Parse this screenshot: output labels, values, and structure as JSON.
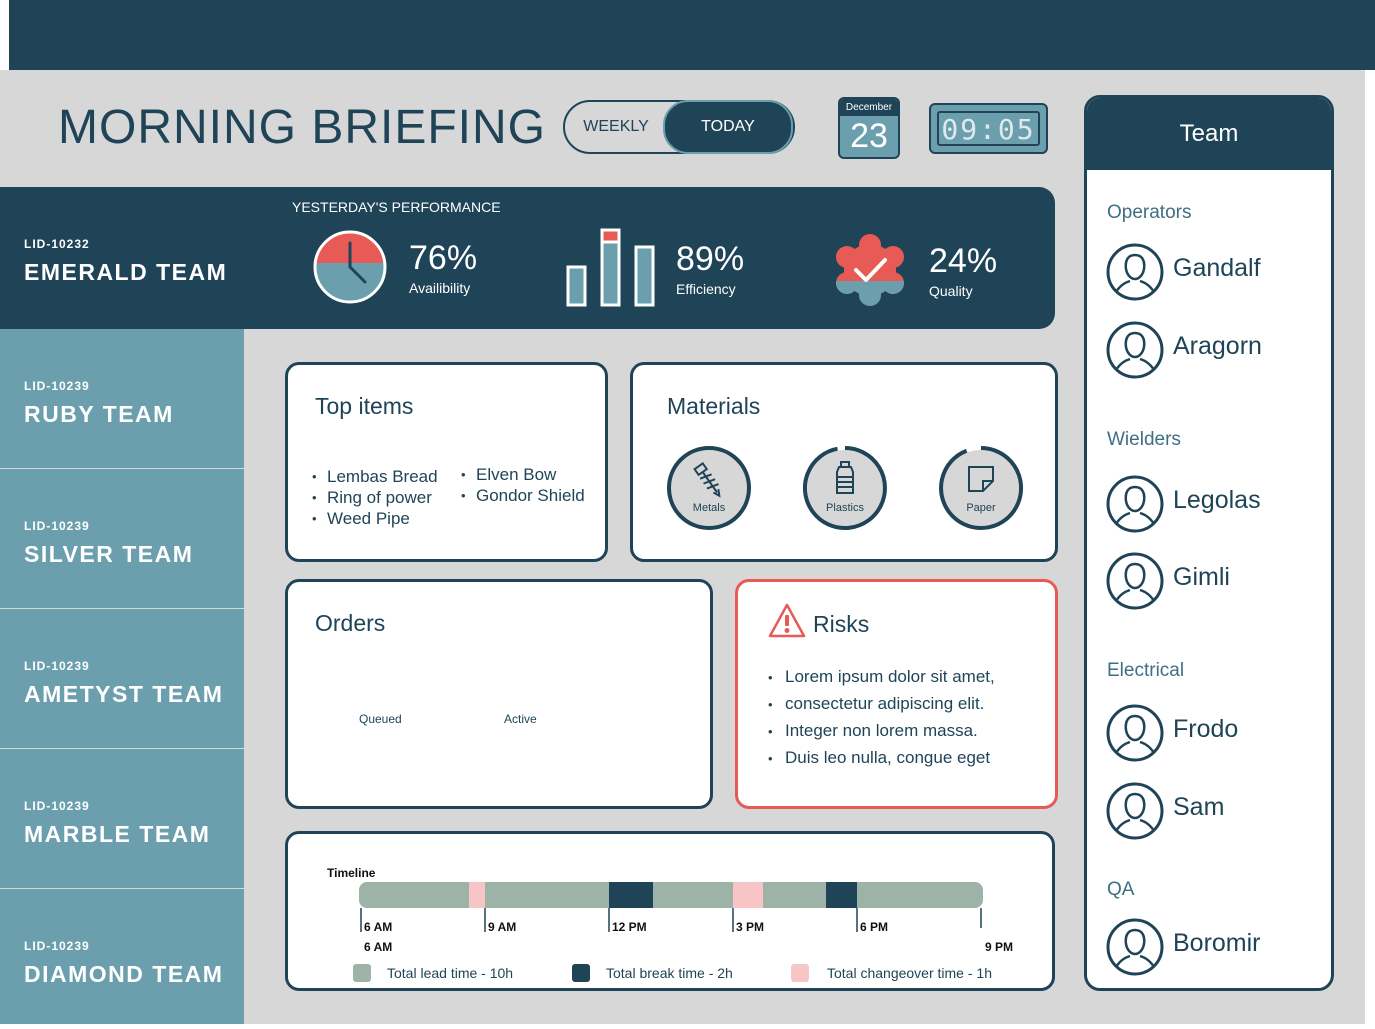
{
  "header": {
    "title": "MORNING BRIEFING",
    "toggle": {
      "weekly": "WEEKLY",
      "today": "TODAY",
      "selected": "today"
    },
    "calendar": {
      "month": "December",
      "day": "23"
    },
    "clock": "09:05"
  },
  "performance": {
    "title": "YESTERDAY'S PERFORMANCE",
    "team": {
      "lid": "LID-10232",
      "name": "EMERALD TEAM"
    },
    "metrics": [
      {
        "value": "76%",
        "label": "Availibility",
        "icon": "clock-icon"
      },
      {
        "value": "89%",
        "label": "Efficiency",
        "icon": "bar-chart-icon"
      },
      {
        "value": "24%",
        "label": "Quality",
        "icon": "quality-badge-icon"
      }
    ]
  },
  "teams": [
    {
      "lid": "LID-10239",
      "name": "RUBY TEAM"
    },
    {
      "lid": "LID-10239",
      "name": "SILVER TEAM"
    },
    {
      "lid": "LID-10239",
      "name": "AMETYST TEAM"
    },
    {
      "lid": "LID-10239",
      "name": "MARBLE TEAM"
    },
    {
      "lid": "LID-10239",
      "name": "DIAMOND TEAM"
    }
  ],
  "top_items": {
    "title": "Top items",
    "col1": [
      "Lembas Bread",
      "Ring of power",
      "Weed Pipe"
    ],
    "col2": [
      "Elven Bow",
      "Gondor Shield"
    ]
  },
  "materials": {
    "title": "Materials",
    "items": [
      {
        "label": "Metals",
        "icon": "screw-icon",
        "level": 1.0
      },
      {
        "label": "Plastics",
        "icon": "bottle-icon",
        "level": 0.97
      },
      {
        "label": "Paper",
        "icon": "paper-icon",
        "level": 0.95
      }
    ]
  },
  "orders": {
    "title": "Orders",
    "labels": [
      "Queued",
      "Active"
    ]
  },
  "risks": {
    "title": "Risks",
    "items": [
      "Lorem ipsum dolor sit amet,",
      "consectetur adipiscing elit.",
      "Integer non lorem massa.",
      "Duis leo nulla, congue eget"
    ]
  },
  "timeline": {
    "label": "Timeline",
    "ticks": [
      "6 AM",
      "9 AM",
      "12 PM",
      "3 PM",
      "6 PM"
    ],
    "start_label": "6 AM",
    "end_label": "9 PM",
    "legend": [
      {
        "label": "Total lead time - 10h",
        "color": "#9db3a8"
      },
      {
        "label": "Total break time - 2h",
        "color": "#1f4457"
      },
      {
        "label": "Total changeover time - 1h",
        "color": "#f7c5c5"
      }
    ]
  },
  "team_panel": {
    "title": "Team",
    "groups": [
      {
        "name": "Operators",
        "members": [
          "Gandalf",
          "Aragorn"
        ]
      },
      {
        "name": "Wielders",
        "members": [
          "Legolas",
          "Gimli"
        ]
      },
      {
        "name": "Electrical",
        "members": [
          "Frodo",
          "Sam"
        ]
      },
      {
        "name": "QA",
        "members": [
          "Boromir"
        ]
      }
    ]
  },
  "colors": {
    "primary": "#1f4457",
    "accent": "#6b9fae",
    "alert": "#e85a55",
    "background": "#d7d7d7"
  }
}
